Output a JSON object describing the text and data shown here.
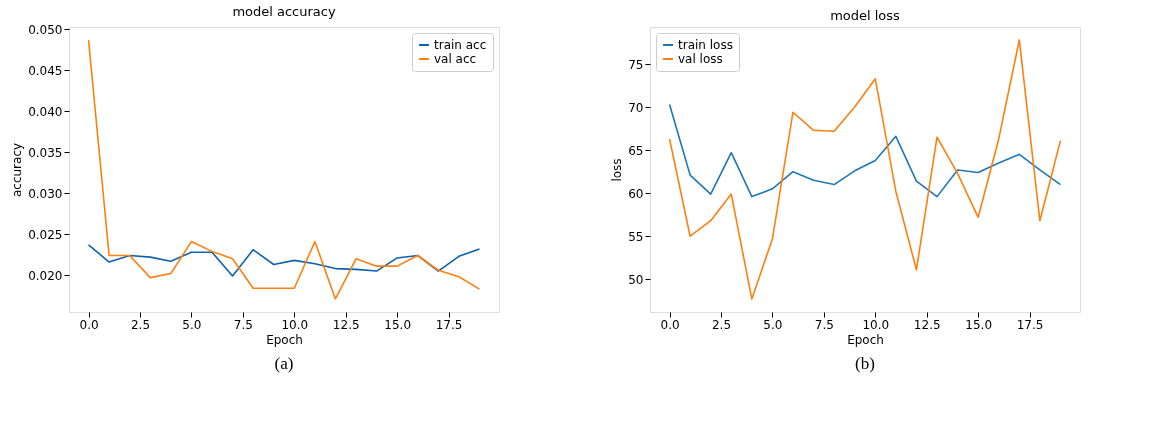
{
  "chart_data": [
    {
      "type": "line",
      "title": "model accuracy",
      "xlabel": "Epoch",
      "ylabel": "accuracy",
      "annotations": [
        "(a)"
      ],
      "x": [
        0,
        1,
        2,
        3,
        4,
        5,
        6,
        7,
        8,
        9,
        10,
        11,
        12,
        13,
        14,
        15,
        16,
        17,
        18,
        19
      ],
      "series": [
        {
          "name": "train acc",
          "color": "#0d62b0",
          "values": [
            0.0237,
            0.0216,
            0.0224,
            0.0222,
            0.0217,
            0.0228,
            0.0228,
            0.0199,
            0.0231,
            0.0213,
            0.0218,
            0.0214,
            0.0208,
            0.0207,
            0.0205,
            0.0221,
            0.0224,
            0.0205,
            0.0223,
            0.0232
          ]
        },
        {
          "name": "val acc",
          "color": "#ff7f0e",
          "values": [
            0.0487,
            0.0224,
            0.0224,
            0.0197,
            0.0202,
            0.0241,
            0.0229,
            0.022,
            0.0184,
            0.0184,
            0.0184,
            0.0241,
            0.0171,
            0.022,
            0.0211,
            0.0211,
            0.0224,
            0.0206,
            0.0198,
            0.0183
          ]
        }
      ],
      "xlim": [
        -0.95,
        19.95
      ],
      "xticks": [
        {
          "value": 0,
          "label": "0.0"
        },
        {
          "value": 2.5,
          "label": "2.5"
        },
        {
          "value": 5,
          "label": "5.0"
        },
        {
          "value": 7.5,
          "label": "7.5"
        },
        {
          "value": 10,
          "label": "10.0"
        },
        {
          "value": 12.5,
          "label": "12.5"
        },
        {
          "value": 15,
          "label": "15.0"
        },
        {
          "value": 17.5,
          "label": "17.5"
        }
      ],
      "ylim": [
        0.0155,
        0.0503
      ],
      "yticks": [
        {
          "value": 0.02,
          "label": "0.020"
        },
        {
          "value": 0.025,
          "label": "0.025"
        },
        {
          "value": 0.03,
          "label": "0.030"
        },
        {
          "value": 0.035,
          "label": "0.035"
        },
        {
          "value": 0.04,
          "label": "0.040"
        },
        {
          "value": 0.045,
          "label": "0.045"
        },
        {
          "value": 0.05,
          "label": "0.050"
        }
      ],
      "grid": false,
      "legend": "top right",
      "marker": "none",
      "line_style": "solid"
    },
    {
      "type": "line",
      "title": "model loss",
      "xlabel": "Epoch",
      "ylabel": "loss",
      "annotations": [
        "(b)"
      ],
      "x": [
        0,
        1,
        2,
        3,
        4,
        5,
        6,
        7,
        8,
        9,
        10,
        11,
        12,
        13,
        14,
        15,
        16,
        17,
        18,
        19
      ],
      "series": [
        {
          "name": "train loss",
          "color": "#1f77b4",
          "values": [
            70.3,
            62.1,
            59.9,
            64.7,
            59.6,
            60.5,
            62.5,
            61.5,
            61.0,
            62.6,
            63.8,
            66.6,
            61.4,
            59.6,
            62.7,
            62.4,
            63.5,
            64.5,
            62.7,
            61.0
          ]
        },
        {
          "name": "val loss",
          "color": "#ff7f0e",
          "values": [
            66.3,
            55.0,
            56.8,
            59.9,
            47.7,
            54.7,
            69.4,
            67.3,
            67.2,
            70.0,
            73.3,
            60.2,
            51.1,
            66.5,
            62.3,
            57.2,
            66.3,
            77.8,
            56.8,
            66.1
          ]
        }
      ],
      "xlim": [
        -0.95,
        19.95
      ],
      "xticks": [
        {
          "value": 0,
          "label": "0.0"
        },
        {
          "value": 2.5,
          "label": "2.5"
        },
        {
          "value": 5,
          "label": "5.0"
        },
        {
          "value": 7.5,
          "label": "7.5"
        },
        {
          "value": 10,
          "label": "10.0"
        },
        {
          "value": 12.5,
          "label": "12.5"
        },
        {
          "value": 15,
          "label": "15.0"
        },
        {
          "value": 17.5,
          "label": "17.5"
        }
      ],
      "ylim": [
        46.2,
        79.3
      ],
      "yticks": [
        50,
        55,
        60,
        65,
        70,
        75
      ],
      "grid": false,
      "legend": "top left",
      "marker": "none",
      "line_style": "solid"
    }
  ]
}
